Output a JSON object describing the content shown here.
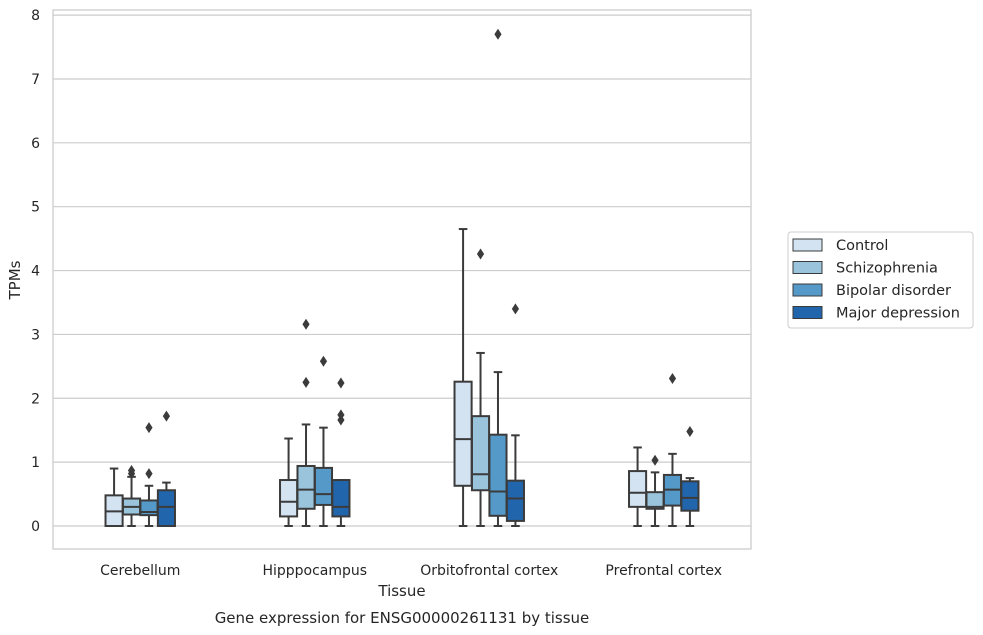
{
  "chart_data": {
    "type": "box",
    "caption": "Gene expression for ENSG00000261131 by tissue",
    "xlabel": "Tissue",
    "ylabel": "TPMs",
    "ylim": [
      -0.36,
      8.08
    ],
    "yticks": [
      0,
      1,
      2,
      3,
      4,
      5,
      6,
      7,
      8
    ],
    "grid": "horizontal",
    "legend_position": "right",
    "categories": [
      "Cerebellum",
      "Hipppocampus",
      "Orbitofrontal cortex",
      "Prefrontal cortex"
    ],
    "series": [
      {
        "name": "Control",
        "color": "#d3e3f2",
        "boxes": [
          {
            "whisker_low": 0,
            "q1": 0,
            "median": 0.23,
            "q3": 0.48,
            "whisker_high": 0.9,
            "outliers": []
          },
          {
            "whisker_low": 0,
            "q1": 0.15,
            "median": 0.38,
            "q3": 0.72,
            "whisker_high": 1.37,
            "outliers": []
          },
          {
            "whisker_low": 0,
            "q1": 0.63,
            "median": 1.36,
            "q3": 2.26,
            "whisker_high": 4.65,
            "outliers": []
          },
          {
            "whisker_low": 0,
            "q1": 0.3,
            "median": 0.52,
            "q3": 0.86,
            "whisker_high": 1.23,
            "outliers": []
          }
        ]
      },
      {
        "name": "Schizophrenia",
        "color": "#9ac3dc",
        "boxes": [
          {
            "whisker_low": 0,
            "q1": 0.18,
            "median": 0.3,
            "q3": 0.43,
            "whisker_high": 0.77,
            "outliers": [
              0.82,
              0.87
            ]
          },
          {
            "whisker_low": 0,
            "q1": 0.27,
            "median": 0.57,
            "q3": 0.94,
            "whisker_high": 1.59,
            "outliers": [
              2.25,
              3.16
            ]
          },
          {
            "whisker_low": 0,
            "q1": 0.56,
            "median": 0.81,
            "q3": 1.72,
            "whisker_high": 2.71,
            "outliers": [
              4.26
            ]
          },
          {
            "whisker_low": 0,
            "q1": 0.27,
            "median": 0.3,
            "q3": 0.53,
            "whisker_high": 0.84,
            "outliers": [
              1.03
            ]
          }
        ]
      },
      {
        "name": "Bipolar disorder",
        "color": "#5599c8",
        "boxes": [
          {
            "whisker_low": 0,
            "q1": 0.17,
            "median": 0.22,
            "q3": 0.4,
            "whisker_high": 0.63,
            "outliers": [
              0.82,
              1.54
            ]
          },
          {
            "whisker_low": 0,
            "q1": 0.33,
            "median": 0.5,
            "q3": 0.91,
            "whisker_high": 1.54,
            "outliers": [
              2.58
            ]
          },
          {
            "whisker_low": 0,
            "q1": 0.16,
            "median": 0.54,
            "q3": 1.43,
            "whisker_high": 2.41,
            "outliers": [
              7.7
            ]
          },
          {
            "whisker_low": 0,
            "q1": 0.32,
            "median": 0.57,
            "q3": 0.8,
            "whisker_high": 1.13,
            "outliers": [
              2.31
            ]
          }
        ]
      },
      {
        "name": "Major depression",
        "color": "#2166ac",
        "boxes": [
          {
            "whisker_low": 0,
            "q1": 0,
            "median": 0.3,
            "q3": 0.56,
            "whisker_high": 0.68,
            "outliers": [
              1.72
            ]
          },
          {
            "whisker_low": 0,
            "q1": 0.15,
            "median": 0.3,
            "q3": 0.72,
            "whisker_high": 0.72,
            "outliers": [
              1.66,
              1.74,
              2.24
            ]
          },
          {
            "whisker_low": 0,
            "q1": 0.08,
            "median": 0.43,
            "q3": 0.71,
            "whisker_high": 1.42,
            "outliers": [
              3.4
            ]
          },
          {
            "whisker_low": 0,
            "q1": 0.24,
            "median": 0.44,
            "q3": 0.7,
            "whisker_high": 0.75,
            "outliers": [
              1.48
            ]
          }
        ]
      }
    ]
  }
}
